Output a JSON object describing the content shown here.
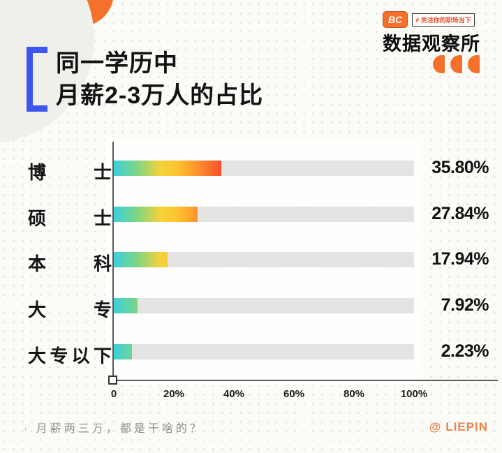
{
  "header": {
    "title_line1": "同一学历中",
    "title_line2": "月薪2-3万人的占比",
    "brand": {
      "badge": "BC",
      "tagline": "# 关注你的职场当下",
      "name": "数据观察所"
    }
  },
  "chart_data": {
    "type": "bar",
    "orientation": "horizontal",
    "title": "同一学历中月薪2-3万人的占比",
    "categories": [
      "博士",
      "硕士",
      "本科",
      "大专",
      "大专以下"
    ],
    "values": [
      35.8,
      27.84,
      17.94,
      7.92,
      2.23
    ],
    "value_labels": [
      "35.80%",
      "27.84%",
      "17.94%",
      "7.92%",
      "2.23%"
    ],
    "x_ticks": [
      "0",
      "20%",
      "40%",
      "60%",
      "80%",
      "100%"
    ],
    "x_tick_positions": [
      0,
      20,
      40,
      60,
      80,
      100
    ],
    "xlim": [
      0,
      100
    ],
    "grid": false,
    "legend": false,
    "track_color": "#E4E4E2",
    "bar_gradient": [
      "#3CCFDC",
      "#7AD687",
      "#F4D23C",
      "#FFC32E",
      "#F9882E",
      "#F7532B"
    ]
  },
  "footer": {
    "caption": "· 月薪两三万，都是干啥的？",
    "credit": "@ LIEPIN"
  },
  "colors": {
    "accent_orange": "#F4702B",
    "bracket_blue": "#3D56EE",
    "tagline_red": "#E8502F"
  }
}
